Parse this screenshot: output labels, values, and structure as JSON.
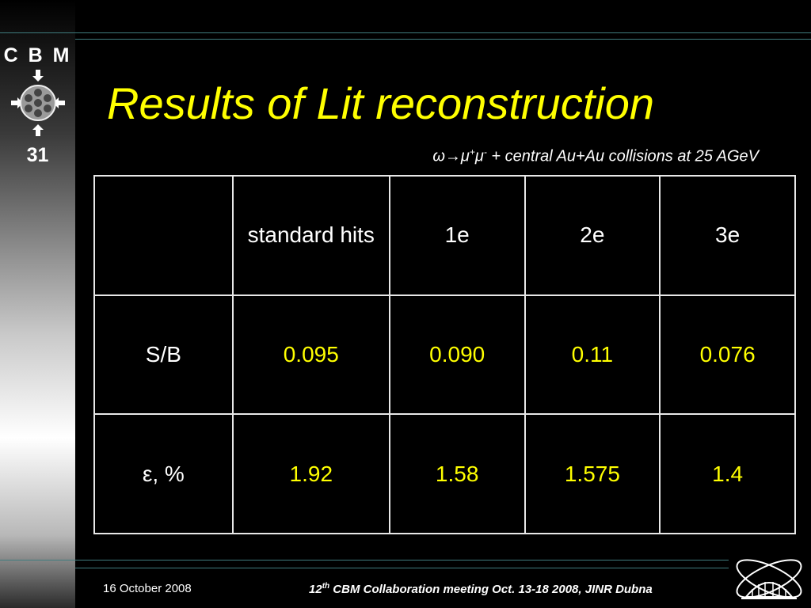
{
  "sidebar": {
    "brand": "C B M",
    "slide_number": "31"
  },
  "slide": {
    "title": "Results of Lit reconstruction",
    "subtitle": {
      "prefix": "ω→μ",
      "sup1": "+",
      "mid": "μ",
      "sup2": "-",
      "suffix": " + central Au+Au collisions at 25 AGeV"
    }
  },
  "table": {
    "header": [
      "",
      "standard hits",
      "1e",
      "2e",
      "3e"
    ],
    "rows": [
      {
        "label": "S/B",
        "values": [
          "0.095",
          "0.090",
          "0.11",
          "0.076"
        ]
      },
      {
        "label": "ε, %",
        "values": [
          "1.92",
          "1.58",
          "1.575",
          "1.4"
        ]
      }
    ]
  },
  "footer": {
    "date": "16 October 2008",
    "meeting_number": "12",
    "meeting_sup": "th",
    "meeting_text": " CBM  Collaboration meeting Oct. 13-18 2008, JINR Dubna"
  },
  "colors": {
    "accent": "#ffff00",
    "background": "#000000",
    "rule": "#3f7c7e"
  }
}
